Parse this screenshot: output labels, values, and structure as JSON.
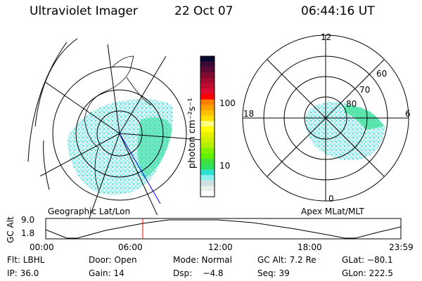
{
  "header": {
    "instrument": "Ultraviolet Imager",
    "date": "22 Oct 07",
    "time": "06:44:16 UT"
  },
  "colorbar": {
    "unit_label": "photon cm⁻²s⁻¹",
    "tick_labels": [
      "100",
      "10"
    ],
    "colors": [
      "#0a0a30",
      "#3a0a35",
      "#5a0a35",
      "#800a30",
      "#a00a30",
      "#c00a30",
      "#e00a30",
      "#ff0000",
      "#ff8000",
      "#ffa000",
      "#ffc000",
      "#ffe000",
      "#ffff80",
      "#ffff00",
      "#e8f000",
      "#d0f000",
      "#b0f000",
      "#80f000",
      "#60f000",
      "#40e040",
      "#30e060",
      "#30e0d0",
      "#90f0f0",
      "#d0e0e0",
      "#e8f0e8",
      "#ffffff"
    ]
  },
  "left_map": {
    "label": "Geographic Lat/Lon"
  },
  "right_map": {
    "label": "Apex MLat/MLT",
    "mlt_labels": [
      "12",
      "18",
      "6",
      "0"
    ],
    "lat_labels": [
      "60",
      "70",
      "80"
    ]
  },
  "timeline": {
    "ylabel": "GC Alt",
    "y_ticks": [
      "9.0",
      "1.8"
    ],
    "x_ticks": [
      "00:00",
      "06:00",
      "12:00",
      "18:00",
      "23:59"
    ],
    "current_time_color": "#ff0000"
  },
  "status": {
    "row1": [
      "Flt: LBHL",
      "Door: Open",
      "Mode: Normal",
      "GC Alt: 7.2 Re",
      "GLat: −80.1"
    ],
    "row2": [
      "IP: 36.0",
      "Gain: 14",
      "Dsp:    −4.8",
      "Seq: 39",
      "GLon: 222.5"
    ]
  }
}
